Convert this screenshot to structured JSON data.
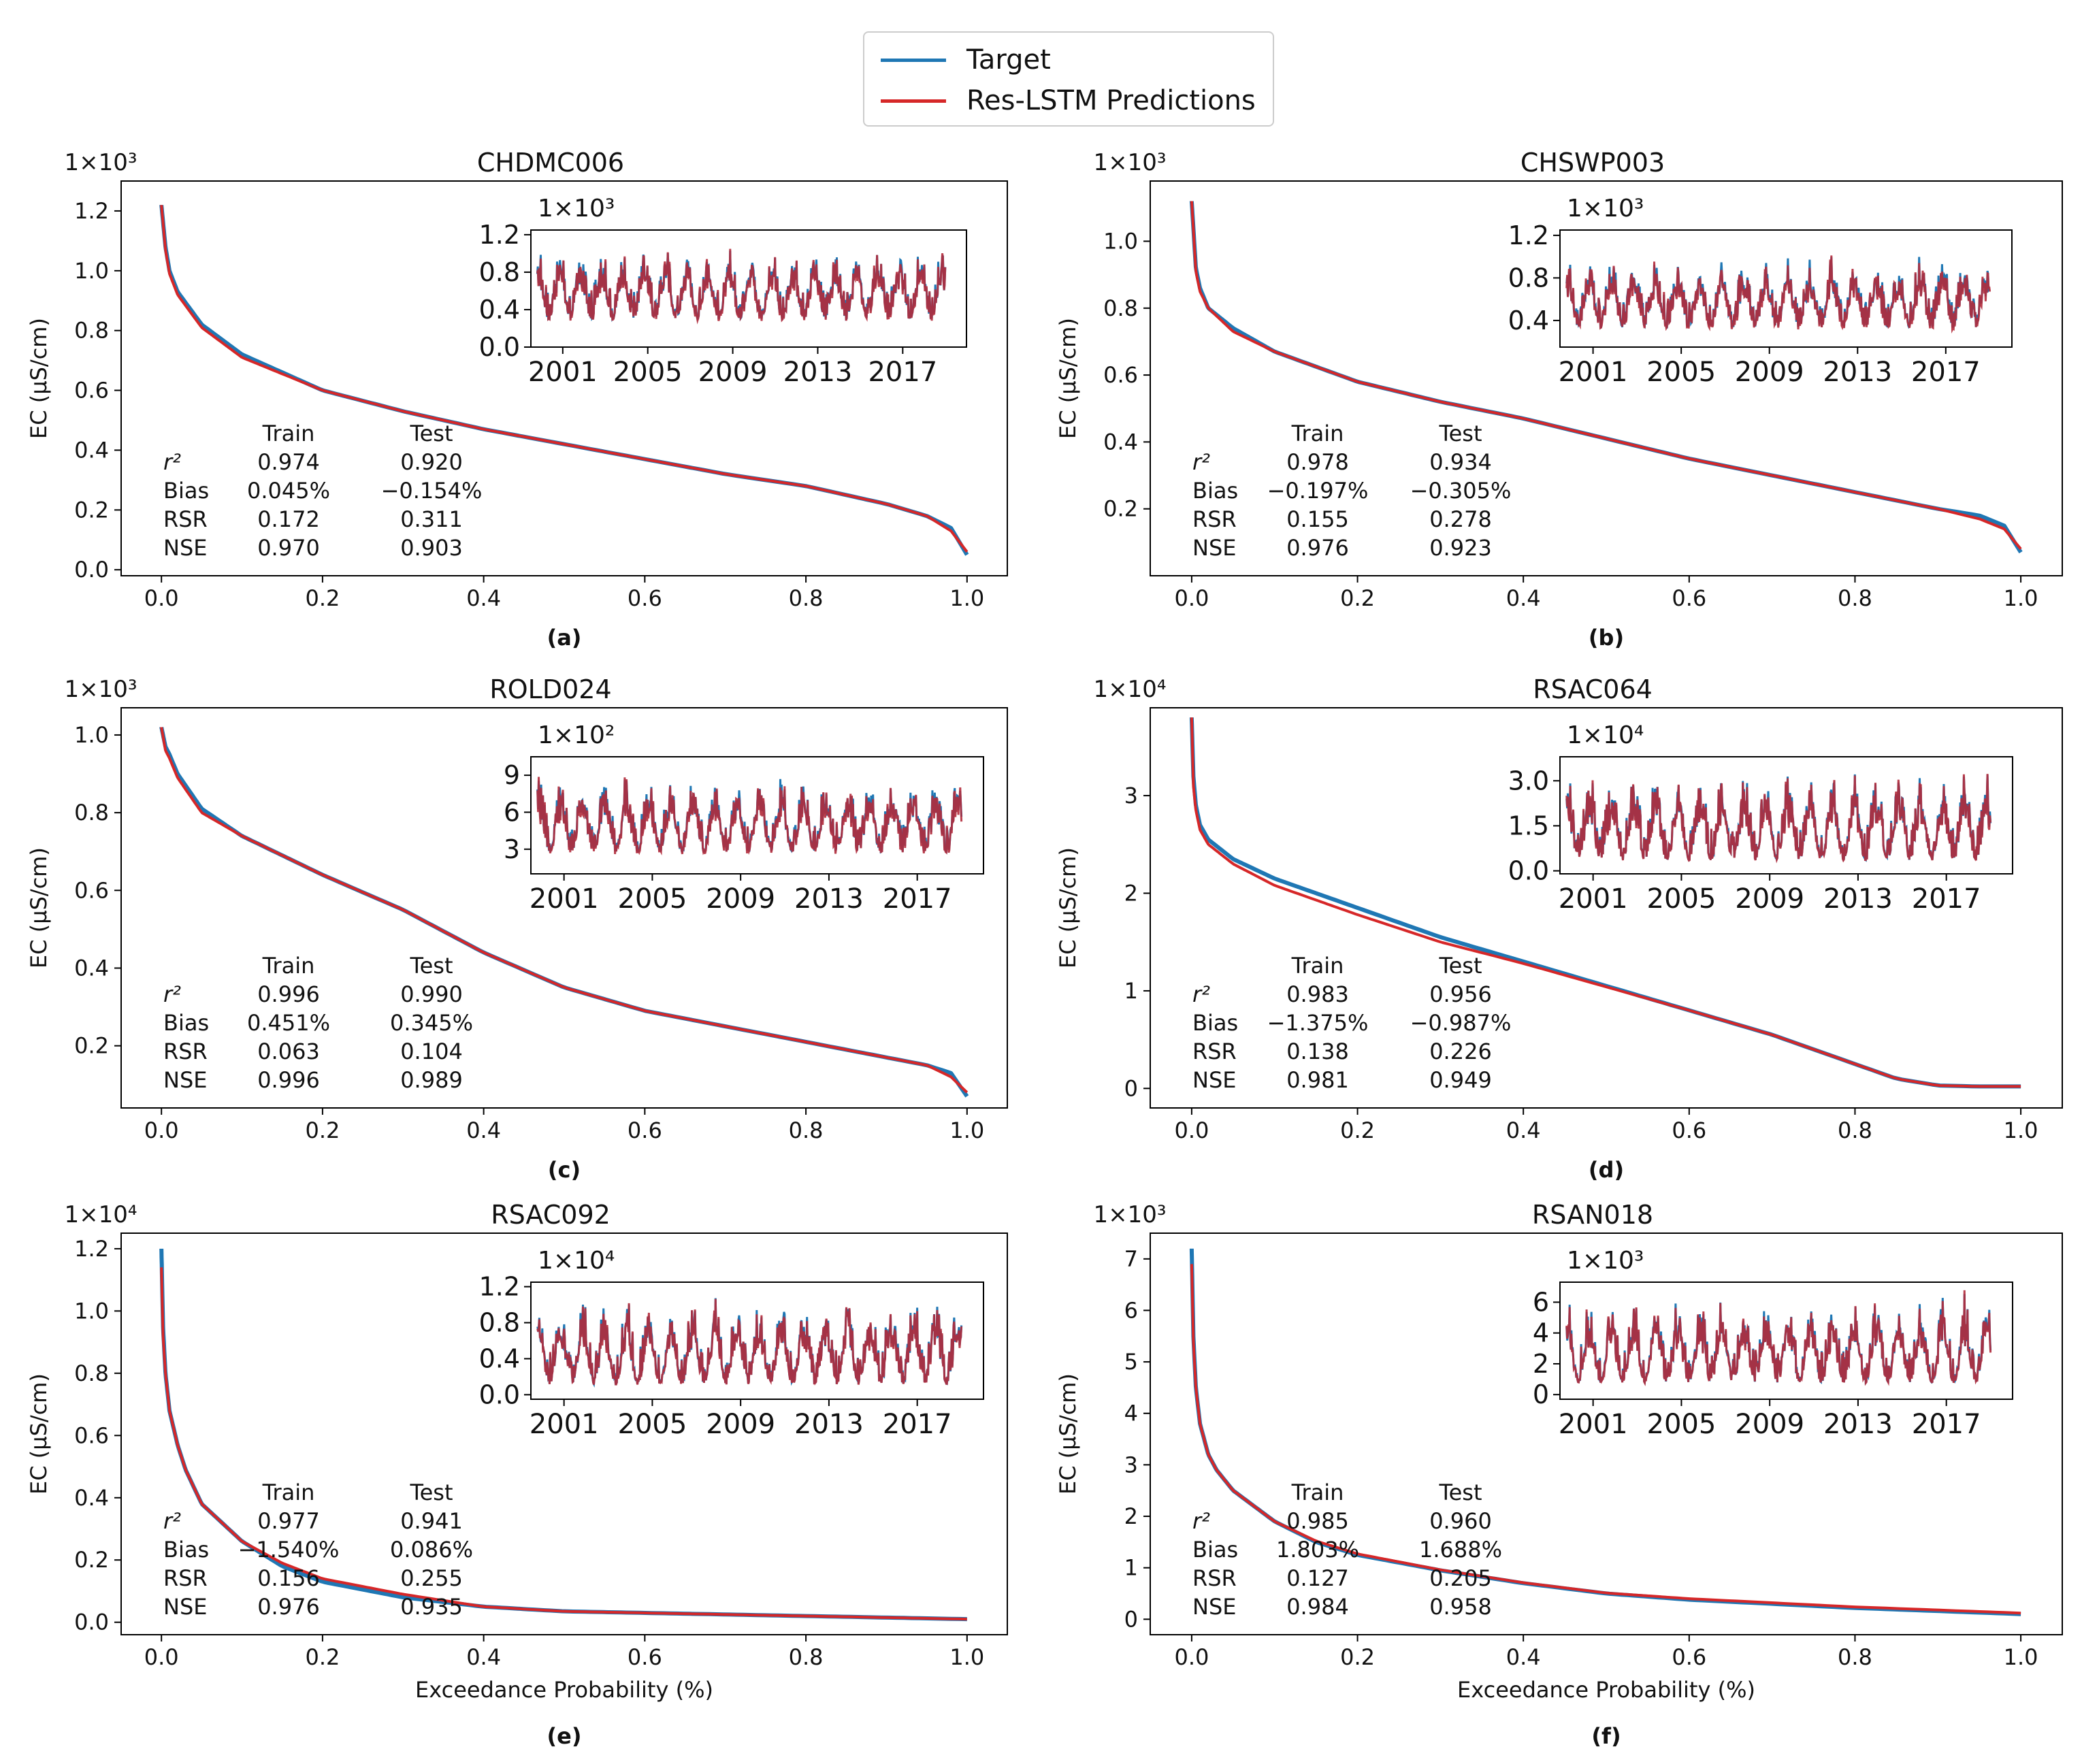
{
  "legend": {
    "entries": [
      {
        "label": "Target",
        "color": "#1f77b4"
      },
      {
        "label": "Res-LSTM Predictions",
        "color": "#d62728"
      }
    ]
  },
  "chart_data": [
    {
      "panel": "(a)",
      "type": "line",
      "title": "CHDMC006",
      "scale_label": "1×10³",
      "xlabel": "",
      "ylabel": "EC (µS/cm)",
      "xlim": [
        -0.05,
        1.05
      ],
      "ylim": [
        -0.02,
        1.3
      ],
      "xticks": [
        "0.0",
        "0.2",
        "0.4",
        "0.6",
        "0.8",
        "1.0"
      ],
      "yticks": [
        "0.0",
        "0.2",
        "0.4",
        "0.6",
        "0.8",
        "1.0",
        "1.2"
      ],
      "series": [
        {
          "name": "Target",
          "x": [
            0,
            0.005,
            0.01,
            0.02,
            0.05,
            0.1,
            0.2,
            0.3,
            0.4,
            0.5,
            0.6,
            0.7,
            0.8,
            0.9,
            0.95,
            0.98,
            1.0
          ],
          "y": [
            1.22,
            1.08,
            1.0,
            0.93,
            0.82,
            0.72,
            0.6,
            0.53,
            0.47,
            0.42,
            0.37,
            0.32,
            0.28,
            0.22,
            0.18,
            0.14,
            0.05
          ]
        },
        {
          "name": "Res-LSTM Predictions",
          "x": [
            0,
            0.005,
            0.01,
            0.02,
            0.05,
            0.1,
            0.2,
            0.3,
            0.4,
            0.5,
            0.6,
            0.7,
            0.8,
            0.9,
            0.95,
            0.98,
            1.0
          ],
          "y": [
            1.22,
            1.07,
            0.99,
            0.92,
            0.81,
            0.71,
            0.6,
            0.53,
            0.47,
            0.42,
            0.37,
            0.32,
            0.28,
            0.22,
            0.18,
            0.13,
            0.06
          ]
        }
      ],
      "stats": {
        "header": [
          "",
          "Train",
          "Test"
        ],
        "rows": [
          [
            "r²",
            "0.974",
            "0.920"
          ],
          [
            "Bias",
            "0.045%",
            "−0.154%"
          ],
          [
            "RSR",
            "0.172",
            "0.311"
          ],
          [
            "NSE",
            "0.970",
            "0.903"
          ]
        ]
      },
      "inset": {
        "scale_label": "1×10³",
        "yticks": [
          "0.0",
          "0.4",
          "0.8",
          "1.2"
        ],
        "ylim": [
          0,
          1.25
        ],
        "xticks": [
          "2001",
          "2005",
          "2009",
          "2013",
          "2017"
        ],
        "xlim": [
          1999.5,
          2020
        ],
        "data_range": [
          1999.8,
          2019
        ],
        "low": 0.2,
        "high": 1.2
      }
    },
    {
      "panel": "(b)",
      "type": "line",
      "title": "CHSWP003",
      "scale_label": "1×10³",
      "xlabel": "",
      "ylabel": "EC (µS/cm)",
      "xlim": [
        -0.05,
        1.05
      ],
      "ylim": [
        0.0,
        1.18
      ],
      "xticks": [
        "0.0",
        "0.2",
        "0.4",
        "0.6",
        "0.8",
        "1.0"
      ],
      "yticks": [
        "0.2",
        "0.4",
        "0.6",
        "0.8",
        "1.0"
      ],
      "series": [
        {
          "name": "Target",
          "x": [
            0,
            0.005,
            0.01,
            0.02,
            0.05,
            0.1,
            0.2,
            0.3,
            0.4,
            0.5,
            0.6,
            0.7,
            0.8,
            0.9,
            0.95,
            0.98,
            1.0
          ],
          "y": [
            1.12,
            0.92,
            0.86,
            0.8,
            0.74,
            0.67,
            0.58,
            0.52,
            0.47,
            0.41,
            0.35,
            0.3,
            0.25,
            0.2,
            0.18,
            0.15,
            0.07
          ]
        },
        {
          "name": "Res-LSTM Predictions",
          "x": [
            0,
            0.005,
            0.01,
            0.02,
            0.05,
            0.1,
            0.2,
            0.3,
            0.4,
            0.5,
            0.6,
            0.7,
            0.8,
            0.9,
            0.95,
            0.98,
            1.0
          ],
          "y": [
            1.12,
            0.91,
            0.85,
            0.8,
            0.73,
            0.67,
            0.58,
            0.52,
            0.47,
            0.41,
            0.35,
            0.3,
            0.25,
            0.2,
            0.17,
            0.14,
            0.08
          ]
        }
      ],
      "stats": {
        "header": [
          "",
          "Train",
          "Test"
        ],
        "rows": [
          [
            "r²",
            "0.978",
            "0.934"
          ],
          [
            "Bias",
            "−0.197%",
            "−0.305%"
          ],
          [
            "RSR",
            "0.155",
            "0.278"
          ],
          [
            "NSE",
            "0.976",
            "0.923"
          ]
        ]
      },
      "inset": {
        "scale_label": "1×10³",
        "yticks": [
          "0.4",
          "0.8",
          "1.2"
        ],
        "ylim": [
          0.15,
          1.25
        ],
        "xticks": [
          "2001",
          "2005",
          "2009",
          "2013",
          "2017"
        ],
        "xlim": [
          1999.5,
          2020
        ],
        "data_range": [
          1999.8,
          2019
        ],
        "low": 0.25,
        "high": 1.1
      }
    },
    {
      "panel": "(c)",
      "type": "line",
      "title": "ROLD024",
      "scale_label": "1×10³",
      "xlabel": "",
      "ylabel": "EC (µS/cm)",
      "xlim": [
        -0.05,
        1.05
      ],
      "ylim": [
        0.04,
        1.07
      ],
      "xticks": [
        "0.0",
        "0.2",
        "0.4",
        "0.6",
        "0.8",
        "1.0"
      ],
      "yticks": [
        "0.2",
        "0.4",
        "0.6",
        "0.8",
        "1.0"
      ],
      "series": [
        {
          "name": "Target",
          "x": [
            0,
            0.005,
            0.01,
            0.02,
            0.05,
            0.1,
            0.2,
            0.3,
            0.4,
            0.5,
            0.6,
            0.7,
            0.8,
            0.9,
            0.95,
            0.98,
            1.0
          ],
          "y": [
            1.02,
            0.97,
            0.95,
            0.9,
            0.81,
            0.74,
            0.64,
            0.55,
            0.44,
            0.35,
            0.29,
            0.25,
            0.21,
            0.17,
            0.15,
            0.13,
            0.07
          ]
        },
        {
          "name": "Res-LSTM Predictions",
          "x": [
            0,
            0.005,
            0.01,
            0.02,
            0.05,
            0.1,
            0.2,
            0.3,
            0.4,
            0.5,
            0.6,
            0.7,
            0.8,
            0.9,
            0.95,
            0.98,
            1.0
          ],
          "y": [
            1.02,
            0.96,
            0.94,
            0.89,
            0.8,
            0.74,
            0.64,
            0.55,
            0.44,
            0.35,
            0.29,
            0.25,
            0.21,
            0.17,
            0.15,
            0.12,
            0.08
          ]
        }
      ],
      "stats": {
        "header": [
          "",
          "Train",
          "Test"
        ],
        "rows": [
          [
            "r²",
            "0.996",
            "0.990"
          ],
          [
            "Bias",
            "0.451%",
            "0.345%"
          ],
          [
            "RSR",
            "0.063",
            "0.104"
          ],
          [
            "NSE",
            "0.996",
            "0.989"
          ]
        ]
      },
      "inset": {
        "scale_label": "1×10²",
        "yticks": [
          "3",
          "6",
          "9"
        ],
        "ylim": [
          1.0,
          10.5
        ],
        "xticks": [
          "2001",
          "2005",
          "2009",
          "2013",
          "2017"
        ],
        "xlim": [
          1999.5,
          2020
        ],
        "data_range": [
          1999.8,
          2019
        ],
        "low": 2,
        "high": 9.8
      }
    },
    {
      "panel": "(d)",
      "type": "line",
      "title": "RSAC064",
      "scale_label": "1×10⁴",
      "xlabel": "",
      "ylabel": "EC (µS/cm)",
      "xlim": [
        -0.05,
        1.05
      ],
      "ylim": [
        -0.2,
        3.9
      ],
      "xticks": [
        "0.0",
        "0.2",
        "0.4",
        "0.6",
        "0.8",
        "1.0"
      ],
      "yticks": [
        "0",
        "1",
        "2",
        "3"
      ],
      "series": [
        {
          "name": "Target",
          "x": [
            0,
            0.002,
            0.005,
            0.01,
            0.02,
            0.05,
            0.1,
            0.2,
            0.3,
            0.4,
            0.5,
            0.6,
            0.7,
            0.8,
            0.85,
            0.9,
            0.95,
            1.0
          ],
          "y": [
            3.8,
            3.2,
            2.9,
            2.7,
            2.55,
            2.35,
            2.15,
            1.85,
            1.55,
            1.3,
            1.05,
            0.8,
            0.55,
            0.25,
            0.1,
            0.03,
            0.02,
            0.02
          ]
        },
        {
          "name": "Res-LSTM Predictions",
          "x": [
            0,
            0.002,
            0.005,
            0.01,
            0.02,
            0.05,
            0.1,
            0.2,
            0.3,
            0.4,
            0.5,
            0.6,
            0.7,
            0.8,
            0.85,
            0.9,
            0.95,
            1.0
          ],
          "y": [
            3.8,
            3.1,
            2.85,
            2.65,
            2.5,
            2.3,
            2.08,
            1.78,
            1.5,
            1.28,
            1.04,
            0.8,
            0.55,
            0.25,
            0.1,
            0.03,
            0.02,
            0.02
          ]
        }
      ],
      "stats": {
        "header": [
          "",
          "Train",
          "Test"
        ],
        "rows": [
          [
            "r²",
            "0.983",
            "0.956"
          ],
          [
            "Bias",
            "−1.375%",
            "−0.987%"
          ],
          [
            "RSR",
            "0.138",
            "0.226"
          ],
          [
            "NSE",
            "0.981",
            "0.949"
          ]
        ]
      },
      "inset": {
        "scale_label": "1×10⁴",
        "yticks": [
          "0.0",
          "1.5",
          "3.0"
        ],
        "ylim": [
          -0.1,
          3.8
        ],
        "xticks": [
          "2001",
          "2005",
          "2009",
          "2013",
          "2017"
        ],
        "xlim": [
          1999.5,
          2020
        ],
        "data_range": [
          1999.8,
          2019
        ],
        "low": 0.0,
        "high": 3.6
      }
    },
    {
      "panel": "(e)",
      "type": "line",
      "title": "RSAC092",
      "scale_label": "1×10⁴",
      "xlabel": "Exceedance Probability (%)",
      "ylabel": "EC (µS/cm)",
      "xlim": [
        -0.05,
        1.05
      ],
      "ylim": [
        -0.04,
        1.25
      ],
      "xticks": [
        "0.0",
        "0.2",
        "0.4",
        "0.6",
        "0.8",
        "1.0"
      ],
      "yticks": [
        "0.0",
        "0.2",
        "0.4",
        "0.6",
        "0.8",
        "1.0",
        "1.2"
      ],
      "series": [
        {
          "name": "Target",
          "x": [
            0,
            0.002,
            0.005,
            0.01,
            0.02,
            0.03,
            0.05,
            0.1,
            0.15,
            0.2,
            0.3,
            0.4,
            0.5,
            0.6,
            0.7,
            0.8,
            0.9,
            1.0
          ],
          "y": [
            1.2,
            0.95,
            0.8,
            0.68,
            0.57,
            0.49,
            0.38,
            0.26,
            0.18,
            0.13,
            0.08,
            0.05,
            0.035,
            0.03,
            0.025,
            0.02,
            0.015,
            0.01
          ]
        },
        {
          "name": "Res-LSTM Predictions",
          "x": [
            0,
            0.002,
            0.005,
            0.01,
            0.02,
            0.03,
            0.05,
            0.1,
            0.15,
            0.2,
            0.3,
            0.4,
            0.5,
            0.6,
            0.7,
            0.8,
            0.9,
            1.0
          ],
          "y": [
            1.14,
            0.92,
            0.8,
            0.68,
            0.57,
            0.49,
            0.38,
            0.26,
            0.19,
            0.14,
            0.09,
            0.05,
            0.035,
            0.03,
            0.025,
            0.02,
            0.015,
            0.01
          ]
        }
      ],
      "stats": {
        "header": [
          "",
          "Train",
          "Test"
        ],
        "rows": [
          [
            "r²",
            "0.977",
            "0.941"
          ],
          [
            "Bias",
            "−1.540%",
            "0.086%"
          ],
          [
            "RSR",
            "0.156",
            "0.255"
          ],
          [
            "NSE",
            "0.976",
            "0.935"
          ]
        ]
      },
      "inset": {
        "scale_label": "1×10⁴",
        "yticks": [
          "0.0",
          "0.4",
          "0.8",
          "1.2"
        ],
        "ylim": [
          -0.05,
          1.25
        ],
        "xticks": [
          "2001",
          "2005",
          "2009",
          "2013",
          "2017"
        ],
        "xlim": [
          1999.5,
          2020
        ],
        "data_range": [
          1999.8,
          2019
        ],
        "low": 0.0,
        "high": 1.2
      }
    },
    {
      "panel": "(f)",
      "type": "line",
      "title": "RSAN018",
      "scale_label": "1×10³",
      "xlabel": "Exceedance Probability (%)",
      "ylabel": "EC (µS/cm)",
      "xlim": [
        -0.05,
        1.05
      ],
      "ylim": [
        -0.3,
        7.5
      ],
      "xticks": [
        "0.0",
        "0.2",
        "0.4",
        "0.6",
        "0.8",
        "1.0"
      ],
      "yticks": [
        "0",
        "1",
        "2",
        "3",
        "4",
        "5",
        "6",
        "7"
      ],
      "series": [
        {
          "name": "Target",
          "x": [
            0,
            0.002,
            0.005,
            0.01,
            0.02,
            0.03,
            0.05,
            0.1,
            0.15,
            0.2,
            0.3,
            0.4,
            0.5,
            0.6,
            0.7,
            0.8,
            0.9,
            1.0
          ],
          "y": [
            7.2,
            5.5,
            4.5,
            3.8,
            3.2,
            2.9,
            2.5,
            1.9,
            1.5,
            1.25,
            0.95,
            0.7,
            0.5,
            0.38,
            0.3,
            0.22,
            0.16,
            0.1
          ]
        },
        {
          "name": "Res-LSTM Predictions",
          "x": [
            0,
            0.002,
            0.005,
            0.01,
            0.02,
            0.03,
            0.05,
            0.1,
            0.15,
            0.2,
            0.3,
            0.4,
            0.5,
            0.6,
            0.7,
            0.8,
            0.9,
            1.0
          ],
          "y": [
            6.9,
            5.4,
            4.5,
            3.8,
            3.2,
            2.9,
            2.5,
            1.9,
            1.52,
            1.27,
            0.96,
            0.71,
            0.51,
            0.4,
            0.32,
            0.24,
            0.18,
            0.12
          ]
        }
      ],
      "stats": {
        "header": [
          "",
          "Train",
          "Test"
        ],
        "rows": [
          [
            "r²",
            "0.985",
            "0.960"
          ],
          [
            "Bias",
            "1.803%",
            "1.688%"
          ],
          [
            "RSR",
            "0.127",
            "0.205"
          ],
          [
            "NSE",
            "0.984",
            "0.958"
          ]
        ]
      },
      "inset": {
        "scale_label": "1×10³",
        "yticks": [
          "0",
          "2",
          "4",
          "6"
        ],
        "ylim": [
          -0.3,
          7.3
        ],
        "xticks": [
          "2001",
          "2005",
          "2009",
          "2013",
          "2017"
        ],
        "xlim": [
          1999.5,
          2020
        ],
        "data_range": [
          1999.8,
          2019
        ],
        "low": 0.1,
        "high": 7.0
      }
    }
  ]
}
